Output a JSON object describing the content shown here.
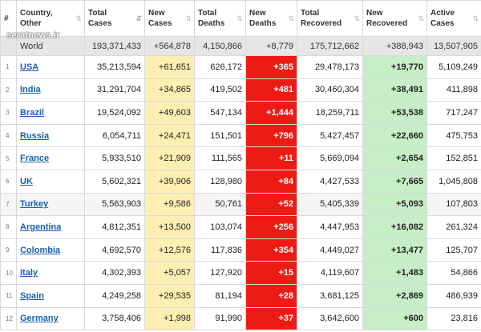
{
  "watermark": "seratnews.ir",
  "columns": [
    {
      "label": "#",
      "sort": ""
    },
    {
      "label": "Country, Other",
      "sort": "⇅"
    },
    {
      "label": "Total Cases",
      "sort": "⇵"
    },
    {
      "label": "New Cases",
      "sort": "⇅"
    },
    {
      "label": "Total Deaths",
      "sort": "⇅"
    },
    {
      "label": "New Deaths",
      "sort": "⇅"
    },
    {
      "label": "Total Recovered",
      "sort": "⇅"
    },
    {
      "label": "New Recovered",
      "sort": "⇅"
    },
    {
      "label": "Active Cases",
      "sort": "⇅"
    }
  ],
  "world": {
    "country": "World",
    "total_cases": "193,371,433",
    "new_cases": "+564,878",
    "total_deaths": "4,150,866",
    "new_deaths": "+8,779",
    "total_recovered": "175,712,662",
    "new_recovered": "+388,943",
    "active_cases": "13,507,905"
  },
  "rows": [
    {
      "idx": "1",
      "country": "USA",
      "total_cases": "35,213,594",
      "new_cases": "+61,651",
      "total_deaths": "626,172",
      "new_deaths": "+365",
      "total_recovered": "29,478,173",
      "new_recovered": "+19,770",
      "active_cases": "5,109,249"
    },
    {
      "idx": "2",
      "country": "India",
      "total_cases": "31,291,704",
      "new_cases": "+34,865",
      "total_deaths": "419,502",
      "new_deaths": "+481",
      "total_recovered": "30,460,304",
      "new_recovered": "+38,491",
      "active_cases": "411,898"
    },
    {
      "idx": "3",
      "country": "Brazil",
      "total_cases": "19,524,092",
      "new_cases": "+49,603",
      "total_deaths": "547,134",
      "new_deaths": "+1,444",
      "total_recovered": "18,259,711",
      "new_recovered": "+53,538",
      "active_cases": "717,247"
    },
    {
      "idx": "4",
      "country": "Russia",
      "total_cases": "6,054,711",
      "new_cases": "+24,471",
      "total_deaths": "151,501",
      "new_deaths": "+796",
      "total_recovered": "5,427,457",
      "new_recovered": "+22,660",
      "active_cases": "475,753"
    },
    {
      "idx": "5",
      "country": "France",
      "total_cases": "5,933,510",
      "new_cases": "+21,909",
      "total_deaths": "111,565",
      "new_deaths": "+11",
      "total_recovered": "5,669,094",
      "new_recovered": "+2,654",
      "active_cases": "152,851"
    },
    {
      "idx": "6",
      "country": "UK",
      "total_cases": "5,602,321",
      "new_cases": "+39,906",
      "total_deaths": "128,980",
      "new_deaths": "+84",
      "total_recovered": "4,427,533",
      "new_recovered": "+7,665",
      "active_cases": "1,045,808"
    },
    {
      "idx": "7",
      "country": "Turkey",
      "total_cases": "5,563,903",
      "new_cases": "+9,586",
      "total_deaths": "50,761",
      "new_deaths": "+52",
      "total_recovered": "5,405,339",
      "new_recovered": "+5,093",
      "active_cases": "107,803"
    },
    {
      "idx": "8",
      "country": "Argentina",
      "total_cases": "4,812,351",
      "new_cases": "+13,500",
      "total_deaths": "103,074",
      "new_deaths": "+256",
      "total_recovered": "4,447,953",
      "new_recovered": "+16,082",
      "active_cases": "261,324"
    },
    {
      "idx": "9",
      "country": "Colombia",
      "total_cases": "4,692,570",
      "new_cases": "+12,576",
      "total_deaths": "117,836",
      "new_deaths": "+354",
      "total_recovered": "4,449,027",
      "new_recovered": "+13,477",
      "active_cases": "125,707"
    },
    {
      "idx": "10",
      "country": "Italy",
      "total_cases": "4,302,393",
      "new_cases": "+5,057",
      "total_deaths": "127,920",
      "new_deaths": "+15",
      "total_recovered": "4,119,607",
      "new_recovered": "+1,483",
      "active_cases": "54,866"
    },
    {
      "idx": "11",
      "country": "Spain",
      "total_cases": "4,249,258",
      "new_cases": "+29,535",
      "total_deaths": "81,194",
      "new_deaths": "+28",
      "total_recovered": "3,681,125",
      "new_recovered": "+2,869",
      "active_cases": "486,939"
    },
    {
      "idx": "12",
      "country": "Germany",
      "total_cases": "3,758,406",
      "new_cases": "+1,998",
      "total_deaths": "91,990",
      "new_deaths": "+37",
      "total_recovered": "3,642,600",
      "new_recovered": "+600",
      "active_cases": "23,816"
    }
  ],
  "colors": {
    "new_cases_bg": "#fdeeb1",
    "new_deaths_bg": "#ee1b14",
    "new_recovered_bg": "#c7eec6",
    "world_row_bg": "#e6e6e6",
    "country_link": "#1a5fb4"
  }
}
